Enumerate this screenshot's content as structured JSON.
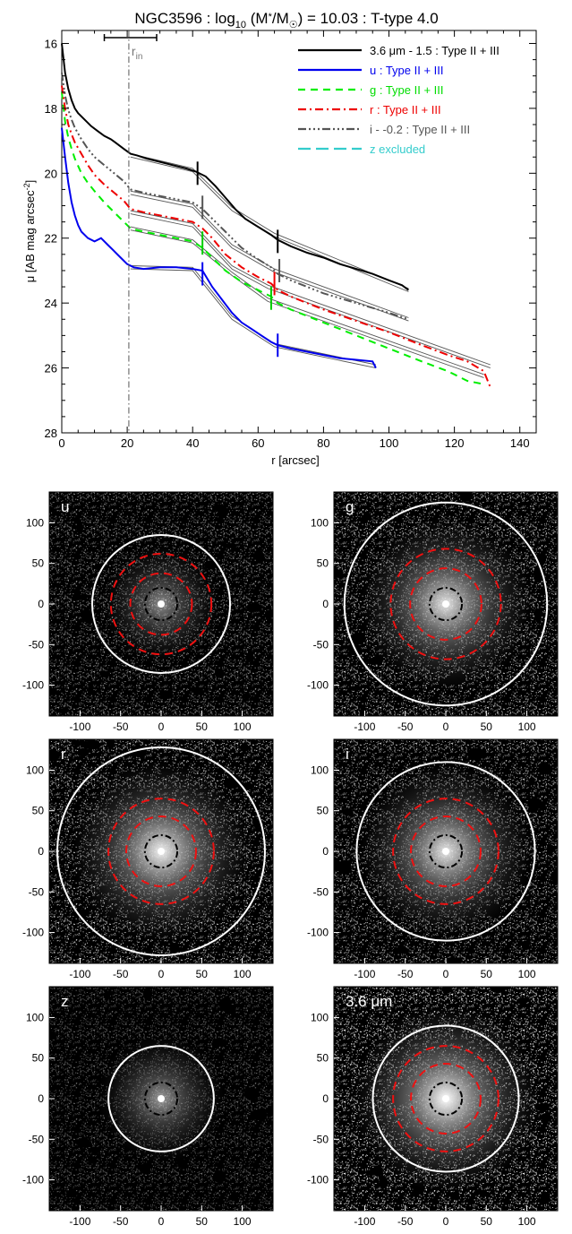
{
  "chart_data": {
    "type": "line",
    "title": "NGC3596 : log10 (M*/M☉) = 10.03 : T-type 4.0",
    "title_parts": {
      "name": "NGC3596 : log",
      "sub": "10",
      "mid": " (M",
      "star": "*",
      "slash": "/M",
      "sun": "☉",
      "tail": ") = 10.03 : T-type 4.0"
    },
    "xlabel": "r [arcsec]",
    "ylabel_main": "μ [AB mag arcsec",
    "ylabel_sup": "-2",
    "ylabel_end": "]",
    "xlim": [
      0,
      145
    ],
    "ylim": [
      28,
      15.6
    ],
    "xticks": [
      "0",
      "20",
      "40",
      "60",
      "80",
      "100",
      "120",
      "140"
    ],
    "yticks": [
      "16",
      "18",
      "20",
      "22",
      "24",
      "26",
      "28"
    ],
    "rin_label": "r",
    "rin_sub": "in",
    "rin_value": 20.5,
    "rin_range": [
      13,
      29
    ],
    "series": [
      {
        "name": "3.6 μm - 1.5 : Type II + III",
        "color": "#000000",
        "dash": "",
        "x": [
          0,
          1,
          2,
          3,
          4,
          5,
          7,
          9,
          11,
          13,
          15,
          17,
          19,
          21,
          23,
          26,
          30,
          34,
          38,
          41,
          44,
          47,
          50,
          53,
          56,
          60,
          64,
          66,
          70,
          75,
          80,
          85,
          90,
          95,
          100,
          104,
          106
        ],
        "y": [
          16.0,
          16.9,
          17.4,
          17.75,
          18.0,
          18.15,
          18.35,
          18.55,
          18.7,
          18.85,
          18.95,
          19.1,
          19.25,
          19.4,
          19.45,
          19.55,
          19.65,
          19.75,
          19.85,
          19.95,
          20.1,
          20.4,
          20.75,
          21.1,
          21.4,
          21.65,
          21.9,
          22.05,
          22.25,
          22.45,
          22.6,
          22.8,
          22.95,
          23.1,
          23.3,
          23.45,
          23.6
        ]
      },
      {
        "name": "u : Type II + III",
        "color": "#0000ee",
        "dash": "",
        "x": [
          0,
          1,
          2,
          3,
          4,
          5,
          6,
          8,
          10,
          12,
          14,
          16,
          18,
          20,
          22,
          25,
          30,
          35,
          40,
          43,
          46,
          49,
          52,
          55,
          58,
          61,
          64,
          66,
          70,
          75,
          80,
          85,
          90,
          95,
          96
        ],
        "y": [
          18.6,
          19.5,
          20.3,
          20.9,
          21.3,
          21.6,
          21.8,
          22.0,
          22.1,
          22.0,
          22.2,
          22.4,
          22.6,
          22.8,
          22.9,
          22.95,
          22.9,
          22.9,
          22.95,
          23.0,
          23.5,
          23.9,
          24.3,
          24.6,
          24.8,
          25.0,
          25.2,
          25.3,
          25.4,
          25.5,
          25.6,
          25.7,
          25.75,
          25.8,
          26.0
        ]
      },
      {
        "name": "g : Type II + III",
        "color": "#00ee00",
        "dash": "8,6",
        "x": [
          0,
          1,
          2,
          3,
          4,
          6,
          8,
          10,
          13,
          16,
          19,
          21,
          25,
          30,
          35,
          40,
          43,
          46,
          50,
          55,
          60,
          64,
          66,
          70,
          75,
          80,
          90,
          100,
          110,
          118,
          124,
          129
        ],
        "y": [
          17.5,
          18.4,
          18.9,
          19.25,
          19.55,
          20.0,
          20.3,
          20.55,
          20.9,
          21.2,
          21.5,
          21.7,
          21.8,
          21.9,
          22.0,
          22.1,
          22.3,
          22.6,
          23.0,
          23.35,
          23.6,
          23.8,
          24.0,
          24.2,
          24.4,
          24.6,
          25.0,
          25.4,
          25.8,
          26.1,
          26.4,
          26.5
        ]
      },
      {
        "name": "r : Type II + III",
        "color": "#ee0000",
        "dash": "9,4,2,4",
        "x": [
          0,
          1,
          2,
          3,
          4,
          6,
          8,
          10,
          13,
          16,
          19,
          21,
          25,
          30,
          35,
          40,
          43,
          46,
          50,
          55,
          60,
          64,
          66,
          70,
          75,
          80,
          90,
          100,
          110,
          118,
          124,
          129,
          131
        ],
        "y": [
          17.3,
          18.0,
          18.5,
          18.8,
          19.05,
          19.4,
          19.75,
          20.05,
          20.35,
          20.6,
          20.85,
          21.1,
          21.2,
          21.3,
          21.4,
          21.5,
          21.7,
          22.0,
          22.5,
          22.9,
          23.2,
          23.4,
          23.6,
          23.8,
          24.0,
          24.2,
          24.55,
          24.9,
          25.3,
          25.6,
          25.8,
          26.1,
          26.6
        ]
      },
      {
        "name": "i - -0.2 : Type II + III",
        "color": "#555555",
        "dash": "9,3,2,3,2,3,2,3",
        "x": [
          0,
          1,
          2,
          3,
          4,
          6,
          8,
          10,
          13,
          16,
          19,
          21,
          25,
          30,
          35,
          40,
          43,
          46,
          50,
          55,
          60,
          64,
          66,
          70,
          75,
          80,
          90,
          100,
          106
        ],
        "y": [
          16.9,
          17.6,
          18.05,
          18.35,
          18.6,
          18.95,
          19.25,
          19.5,
          19.75,
          20.0,
          20.25,
          20.5,
          20.6,
          20.7,
          20.8,
          20.9,
          21.1,
          21.4,
          21.8,
          22.3,
          22.65,
          22.9,
          23.1,
          23.3,
          23.5,
          23.7,
          24.0,
          24.3,
          24.5
        ]
      }
    ],
    "excluded_series": {
      "name": "z excluded",
      "color": "#33cccc",
      "dash": "14,6"
    },
    "fit_lines": [
      {
        "x": [
          21,
          40,
          52,
          65,
          106
        ],
        "y": [
          19.4,
          19.85,
          21.05,
          21.85,
          23.55
        ]
      },
      {
        "x": [
          21,
          40,
          52,
          65,
          106
        ],
        "y": [
          19.5,
          19.95,
          21.15,
          21.95,
          23.65
        ]
      },
      {
        "x": [
          21,
          40,
          52,
          65,
          106
        ],
        "y": [
          20.55,
          20.95,
          22.2,
          22.95,
          24.45
        ]
      },
      {
        "x": [
          21,
          40,
          52,
          65,
          106
        ],
        "y": [
          20.65,
          21.05,
          22.3,
          23.05,
          24.55
        ]
      },
      {
        "x": [
          21,
          40,
          52,
          63,
          131
        ],
        "y": [
          21.15,
          21.55,
          22.85,
          23.45,
          25.9
        ]
      },
      {
        "x": [
          21,
          40,
          52,
          63,
          131
        ],
        "y": [
          21.25,
          21.65,
          22.95,
          23.55,
          26.0
        ]
      },
      {
        "x": [
          21,
          40,
          52,
          63,
          129
        ],
        "y": [
          21.65,
          22.05,
          23.05,
          23.85,
          26.2
        ]
      },
      {
        "x": [
          21,
          40,
          52,
          63,
          129
        ],
        "y": [
          21.75,
          22.15,
          23.15,
          23.95,
          26.3
        ]
      },
      {
        "x": [
          21,
          40,
          52,
          65,
          96
        ],
        "y": [
          22.85,
          22.9,
          24.4,
          25.25,
          25.9
        ]
      },
      {
        "x": [
          21,
          40,
          52,
          65,
          96
        ],
        "y": [
          22.95,
          23.0,
          24.5,
          25.35,
          26.0
        ]
      }
    ],
    "break_marks": [
      {
        "x": 41.5,
        "y": 20.0,
        "color": "#000000"
      },
      {
        "x": 66,
        "y": 22.1,
        "color": "#000000"
      },
      {
        "x": 43,
        "y": 21.05,
        "color": "#555555"
      },
      {
        "x": 66.5,
        "y": 23.0,
        "color": "#555555"
      },
      {
        "x": 43,
        "y": 22.15,
        "color": "#00cc00"
      },
      {
        "x": 64,
        "y": 23.85,
        "color": "#00cc00"
      },
      {
        "x": 65,
        "y": 23.4,
        "color": "#ee0000"
      },
      {
        "x": 43,
        "y": 23.1,
        "color": "#0000ee"
      },
      {
        "x": 66,
        "y": 25.3,
        "color": "#0000ee"
      }
    ]
  },
  "panels": [
    {
      "label": "u",
      "outer_r": 85,
      "dashed_r": [
        62,
        38
      ],
      "inner_r": 20,
      "noise": 0.62,
      "glow": 0.55
    },
    {
      "label": "g",
      "outer_r": 125,
      "dashed_r": [
        68,
        44
      ],
      "inner_r": 20,
      "noise": 0.85,
      "glow": 0.9
    },
    {
      "label": "r",
      "outer_r": 128,
      "dashed_r": [
        65,
        43
      ],
      "inner_r": 20,
      "noise": 0.85,
      "glow": 0.95
    },
    {
      "label": "i",
      "outer_r": 110,
      "dashed_r": [
        65,
        43
      ],
      "inner_r": 20,
      "noise": 0.8,
      "glow": 0.9
    },
    {
      "label": "z",
      "outer_r": 65,
      "dashed_r": [],
      "inner_r": 20,
      "noise": 0.45,
      "glow": 0.6
    },
    {
      "label": "3.6 μm",
      "outer_r": 90,
      "dashed_r": [
        65,
        43
      ],
      "inner_r": 20,
      "noise": 1.0,
      "glow": 1.0
    }
  ],
  "panel_axis": {
    "xticks": [
      "-100",
      "-50",
      "0",
      "50",
      "100"
    ],
    "yticks": [
      "100",
      "50",
      "0",
      "-50",
      "-100"
    ],
    "tick_values": [
      -100,
      -50,
      0,
      50,
      100
    ],
    "lim": [
      -138,
      138
    ]
  }
}
